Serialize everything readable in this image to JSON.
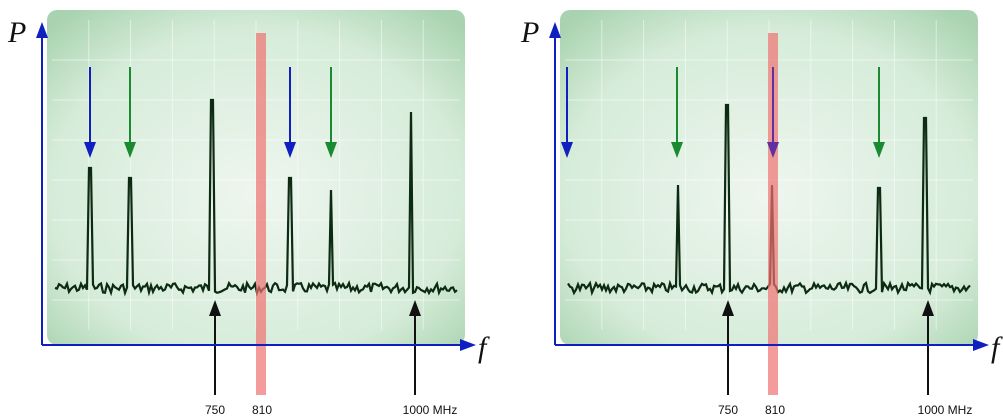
{
  "panels": [
    {
      "y_axis_label": "P",
      "x_axis_label": "f",
      "labels": [
        "750",
        "810",
        "1000 MHz"
      ]
    },
    {
      "y_axis_label": "P",
      "x_axis_label": "f",
      "labels": [
        "750",
        "810",
        "1000 MHz"
      ]
    }
  ]
}
